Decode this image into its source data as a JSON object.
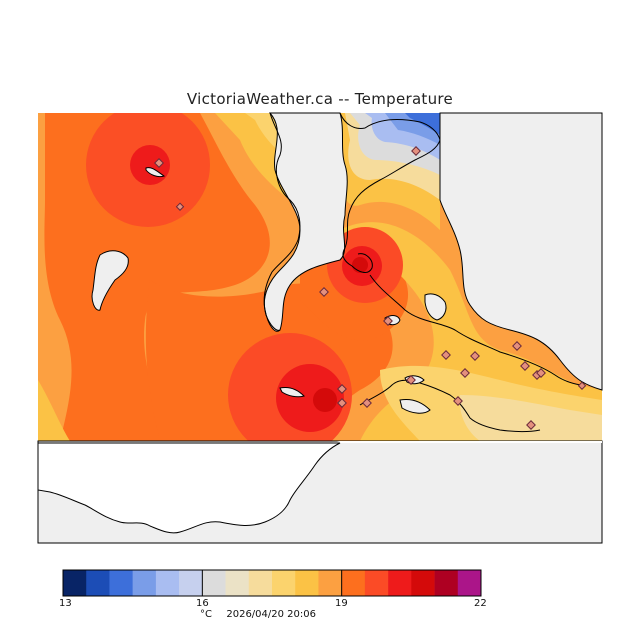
{
  "title": "VictoriaWeather.ca -- Temperature",
  "colors": {
    "land_orange": "#fd6f1e",
    "light_orange": "#fca041",
    "yellow": "#fbc94f",
    "pale_yellow": "#fce27f",
    "cream": "#f6ebc1",
    "grey_neutral": "#dcdcdc",
    "red": "#ee1b1b",
    "dark_red": "#d40a0a",
    "water": "#efefef",
    "blue": "#3d6fda"
  },
  "colorbar": {
    "colors": [
      "#082466",
      "#1c4db6",
      "#3d6fda",
      "#7a9de8",
      "#a9bdf1",
      "#c6d0ee",
      "#dcdcdc",
      "#ebe2c6",
      "#f6dc9c",
      "#fbd36d",
      "#fbc245",
      "#fca041",
      "#fd6f1e",
      "#fb4b26",
      "#ee1b1b",
      "#d40a0a",
      "#ae0022",
      "#ab1589"
    ],
    "ticks": [
      "13",
      "16",
      "19",
      "22"
    ],
    "unit": "°C",
    "timestamp": "2026/04/20 20:06"
  }
}
